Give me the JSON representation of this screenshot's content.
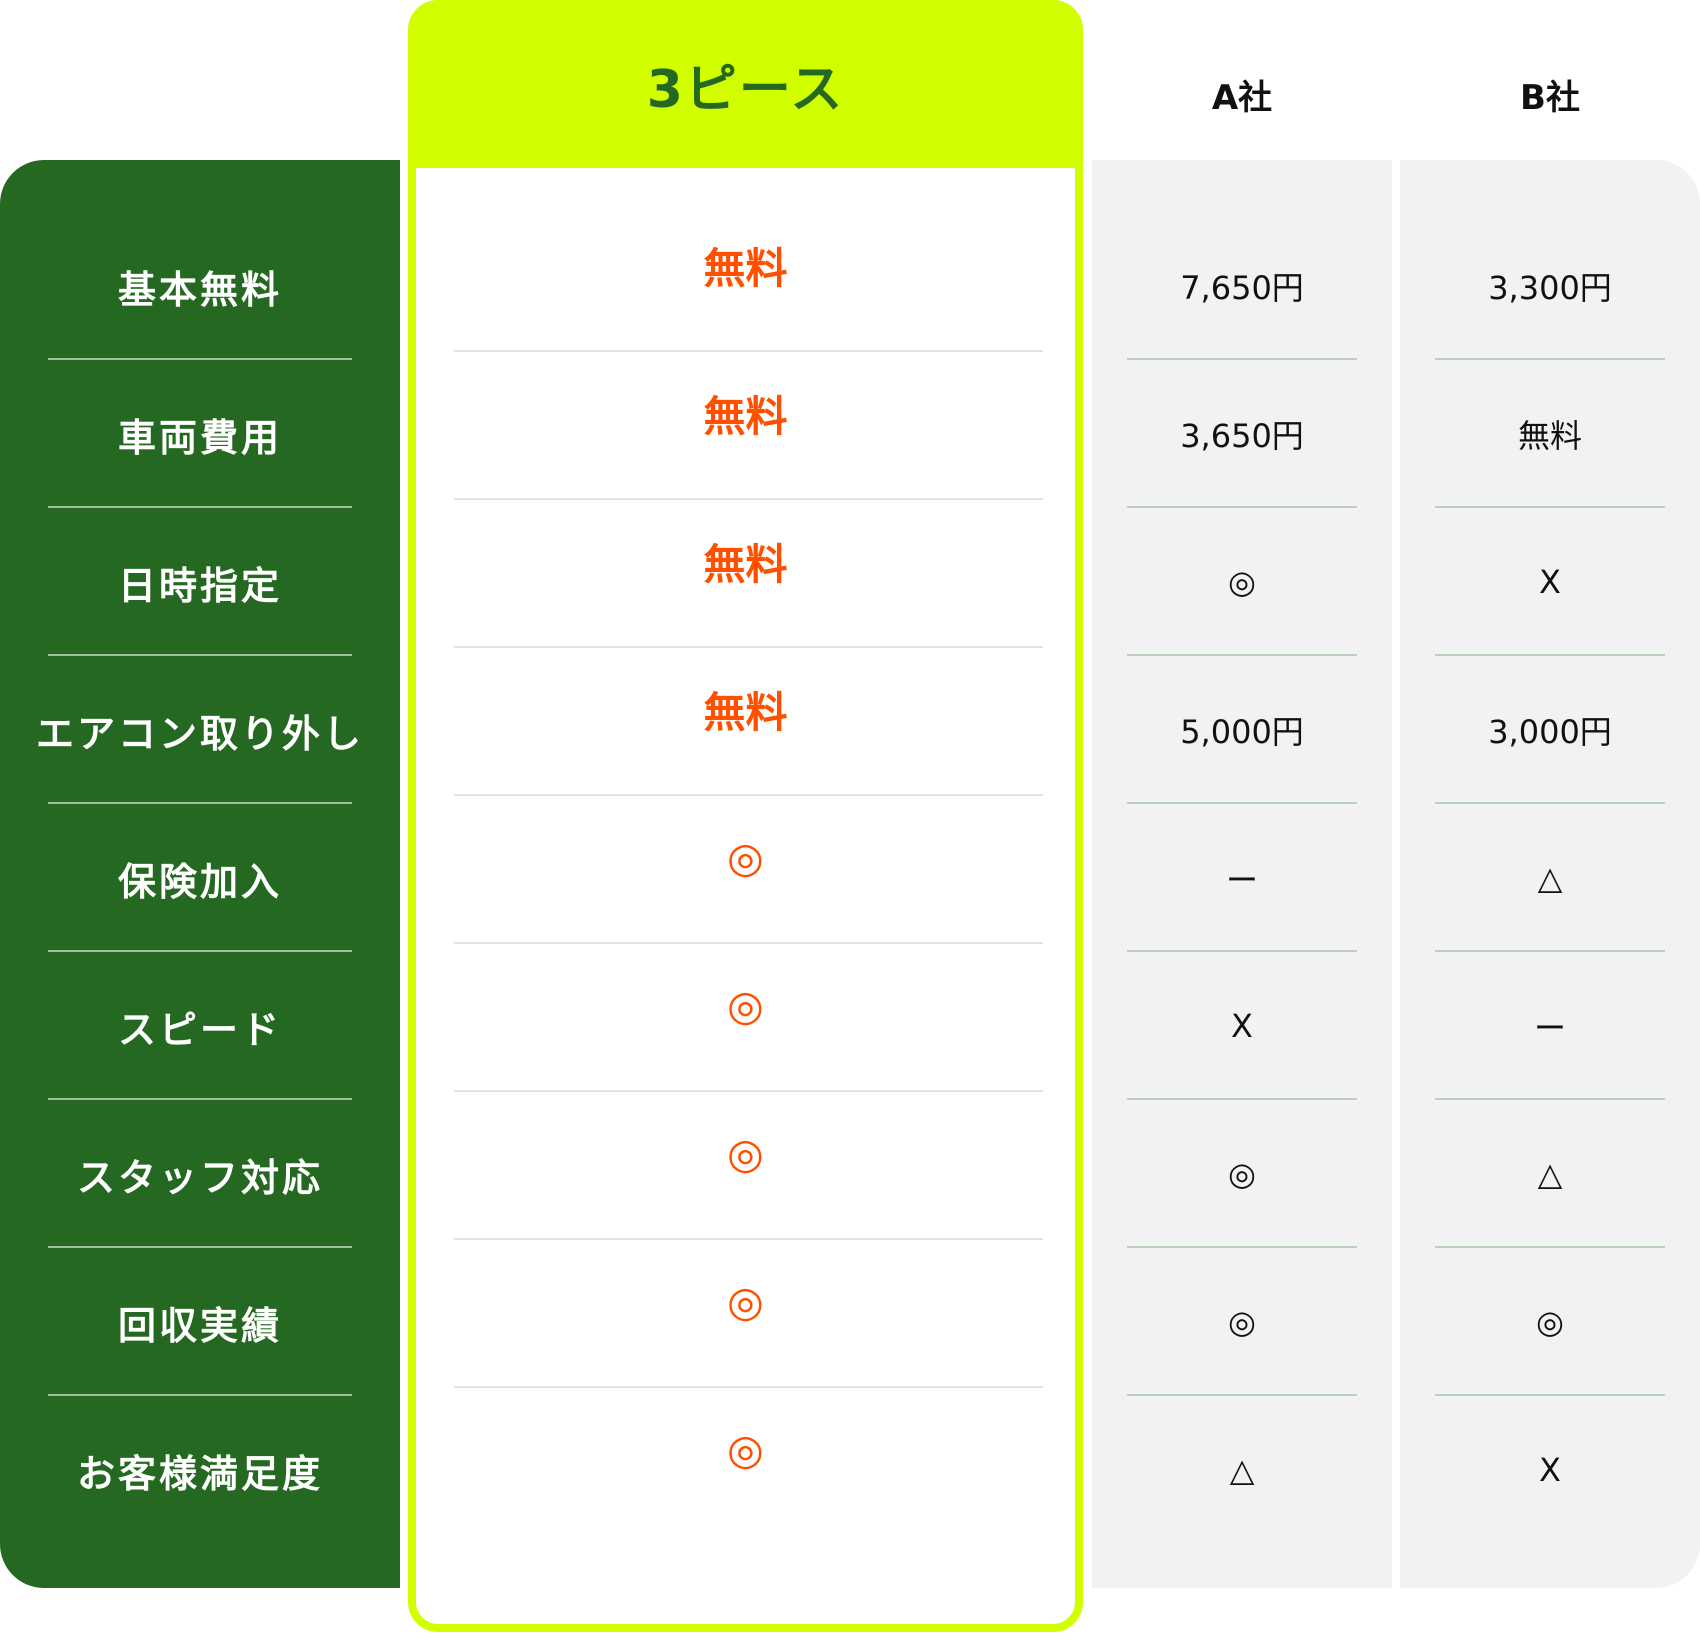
{
  "header": {
    "highlight": "3ピース",
    "company_a": "A社",
    "company_b": "B社"
  },
  "colors": {
    "label_bg": "#256821",
    "highlight_border": "#d2ff00",
    "highlight_text": "#ff5000",
    "compare_bg": "#f2f2f2"
  },
  "rows": [
    {
      "label": "基本無料",
      "ours": "無料",
      "a": "7,650円",
      "b": "3,300円"
    },
    {
      "label": "車両費用",
      "ours": "無料",
      "a": "3,650円",
      "b": "無料"
    },
    {
      "label": "日時指定",
      "ours": "無料",
      "a": "◎",
      "b": "X"
    },
    {
      "label": "エアコン取り外し",
      "ours": "無料",
      "a": "5,000円",
      "b": "3,000円"
    },
    {
      "label": "保険加入",
      "ours": "◎",
      "a": "ー",
      "b": "△"
    },
    {
      "label": "スピード",
      "ours": "◎",
      "a": "X",
      "b": "ー"
    },
    {
      "label": "スタッフ対応",
      "ours": "◎",
      "a": "◎",
      "b": "△"
    },
    {
      "label": "回収実績",
      "ours": "◎",
      "a": "◎",
      "b": "◎"
    },
    {
      "label": "お客様満足度",
      "ours": "◎",
      "a": "△",
      "b": "X"
    }
  ]
}
